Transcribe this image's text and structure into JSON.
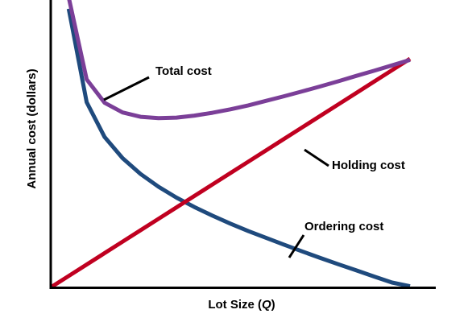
{
  "chart_data": {
    "type": "line",
    "title": "",
    "xlabel_prefix": "Lot Size (",
    "xlabel_var": "Q",
    "xlabel_suffix": ")",
    "ylabel": "Annual cost (dollars)",
    "x": [
      5,
      10,
      15,
      20,
      25,
      30,
      35,
      40,
      45,
      50,
      55,
      60,
      65,
      70,
      75,
      80,
      85,
      90,
      95,
      100
    ],
    "xlim": [
      0,
      100
    ],
    "ylim": [
      0,
      100
    ],
    "grid": false,
    "legend": "none",
    "series": [
      {
        "name": "Total cost",
        "color": "#7b3f98",
        "values": [
          101.5,
          72.8,
          64.6,
          61.2,
          59.7,
          59.2,
          59.4,
          60.1,
          61.1,
          62.3,
          63.7,
          65.3,
          66.9,
          68.6,
          70.3,
          72.1,
          74.0,
          75.8,
          77.7,
          79.6
        ]
      },
      {
        "name": "Holding cost",
        "color": "#c00020",
        "values": [
          4,
          8,
          12,
          16,
          20,
          24,
          28,
          32,
          36,
          40,
          44,
          48,
          52,
          56,
          60,
          64,
          68,
          72,
          76,
          80
        ]
      },
      {
        "name": "Ordering cost",
        "color": "#1f4a7d",
        "values": [
          97.5,
          64.8,
          52.6,
          45.2,
          39.7,
          35.2,
          31.4,
          28.1,
          25.1,
          22.3,
          19.7,
          17.3,
          14.9,
          12.6,
          10.3,
          8.1,
          6.0,
          3.8,
          1.7,
          0.4
        ]
      }
    ],
    "annotations": [
      {
        "text": "Total cost",
        "series": "Total cost"
      },
      {
        "text": "Holding cost",
        "series": "Holding cost"
      },
      {
        "text": "Ordering cost",
        "series": "Ordering cost"
      }
    ]
  }
}
